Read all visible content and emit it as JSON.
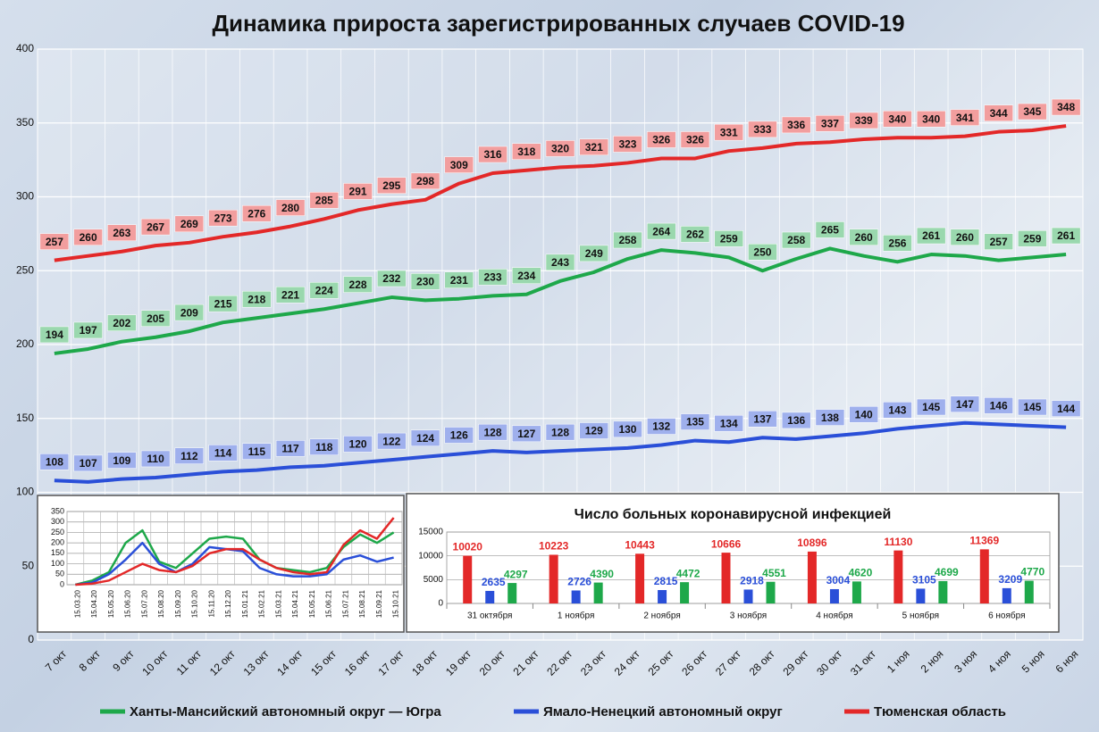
{
  "chart_data": [
    {
      "type": "line",
      "title": "Динамика прироста зарегистрированных случаев COVID-19",
      "categories": [
        "7 окт",
        "8 окт",
        "9 окт",
        "10 окт",
        "11 окт",
        "12 окт",
        "13 окт",
        "14 окт",
        "15 окт",
        "16 окт",
        "17 окт",
        "18 окт",
        "19 окт",
        "20 окт",
        "21 окт",
        "22 окт",
        "23 окт",
        "24 окт",
        "25 окт",
        "26 окт",
        "27 окт",
        "28 окт",
        "29 окт",
        "30 окт",
        "31 окт",
        "1 ноя",
        "2 ноя",
        "3 ноя",
        "4 ноя",
        "5 ноя",
        "6 ноя"
      ],
      "series": [
        {
          "name": "Ханты-Мансийский автономный округ — Югра",
          "color": "#1ea84a",
          "values": [
            194,
            197,
            202,
            205,
            209,
            215,
            218,
            221,
            224,
            228,
            232,
            230,
            231,
            233,
            234,
            243,
            249,
            258,
            264,
            262,
            259,
            250,
            258,
            265,
            260,
            256,
            261,
            260,
            257,
            259,
            261
          ]
        },
        {
          "name": "Ямало-Ненецкий автономный округ",
          "color": "#2a4fd8",
          "values": [
            108,
            107,
            109,
            110,
            112,
            114,
            115,
            117,
            118,
            120,
            122,
            124,
            126,
            128,
            127,
            128,
            129,
            130,
            132,
            135,
            134,
            137,
            136,
            138,
            140,
            143,
            145,
            147,
            146,
            145,
            144
          ]
        },
        {
          "name": "Тюменская область",
          "color": "#e32828",
          "values": [
            257,
            260,
            263,
            267,
            269,
            273,
            276,
            280,
            285,
            291,
            295,
            298,
            309,
            316,
            318,
            320,
            321,
            323,
            326,
            326,
            331,
            333,
            336,
            337,
            339,
            340,
            340,
            341,
            344,
            345,
            348
          ]
        }
      ],
      "ylim": [
        0,
        400
      ],
      "yticks": [
        0,
        50,
        100,
        150,
        200,
        250,
        300,
        350,
        400
      ],
      "grid": true,
      "data_labels": true,
      "legend": "bottom"
    },
    {
      "type": "line",
      "categories": [
        "15.03.20",
        "15.04.20",
        "15.05.20",
        "15.06.20",
        "15.07.20",
        "15.08.20",
        "15.09.20",
        "15.10.20",
        "15.11.20",
        "15.12.20",
        "15.01.21",
        "15.02.21",
        "15.03.21",
        "15.04.21",
        "15.05.21",
        "15.06.21",
        "15.07.21",
        "15.08.21",
        "15.09.21",
        "15.10.21"
      ],
      "series": [
        {
          "color": "#1ea84a",
          "values": [
            0,
            20,
            60,
            200,
            260,
            110,
            80,
            150,
            220,
            230,
            220,
            120,
            80,
            70,
            60,
            80,
            180,
            240,
            200,
            250
          ]
        },
        {
          "color": "#2a4fd8",
          "values": [
            0,
            10,
            50,
            120,
            200,
            100,
            60,
            100,
            180,
            170,
            160,
            80,
            50,
            40,
            40,
            50,
            120,
            140,
            110,
            130
          ]
        },
        {
          "color": "#e32828",
          "values": [
            0,
            5,
            20,
            60,
            100,
            70,
            60,
            90,
            150,
            170,
            170,
            120,
            80,
            60,
            50,
            60,
            190,
            260,
            220,
            320
          ]
        }
      ],
      "ylim": [
        0,
        350
      ],
      "yticks": [
        0,
        50,
        100,
        150,
        200,
        250,
        300,
        350
      ],
      "grid": true
    },
    {
      "type": "bar",
      "title": "Число больных коронавирусной  инфекцией",
      "categories": [
        "31 октября",
        "1 ноября",
        "2 ноября",
        "3 ноября",
        "4 ноября",
        "5 ноября",
        "6 ноября"
      ],
      "series": [
        {
          "color": "#e32828",
          "values": [
            10020,
            10223,
            10443,
            10666,
            10896,
            11130,
            11369
          ]
        },
        {
          "color": "#2a4fd8",
          "values": [
            2635,
            2726,
            2815,
            2918,
            3004,
            3105,
            3209
          ]
        },
        {
          "color": "#1ea84a",
          "values": [
            4297,
            4390,
            4472,
            4551,
            4620,
            4699,
            4770
          ]
        }
      ],
      "ylim": [
        0,
        15000
      ],
      "yticks": [
        0,
        5000,
        10000,
        15000
      ],
      "grid": true,
      "data_labels": true
    }
  ]
}
